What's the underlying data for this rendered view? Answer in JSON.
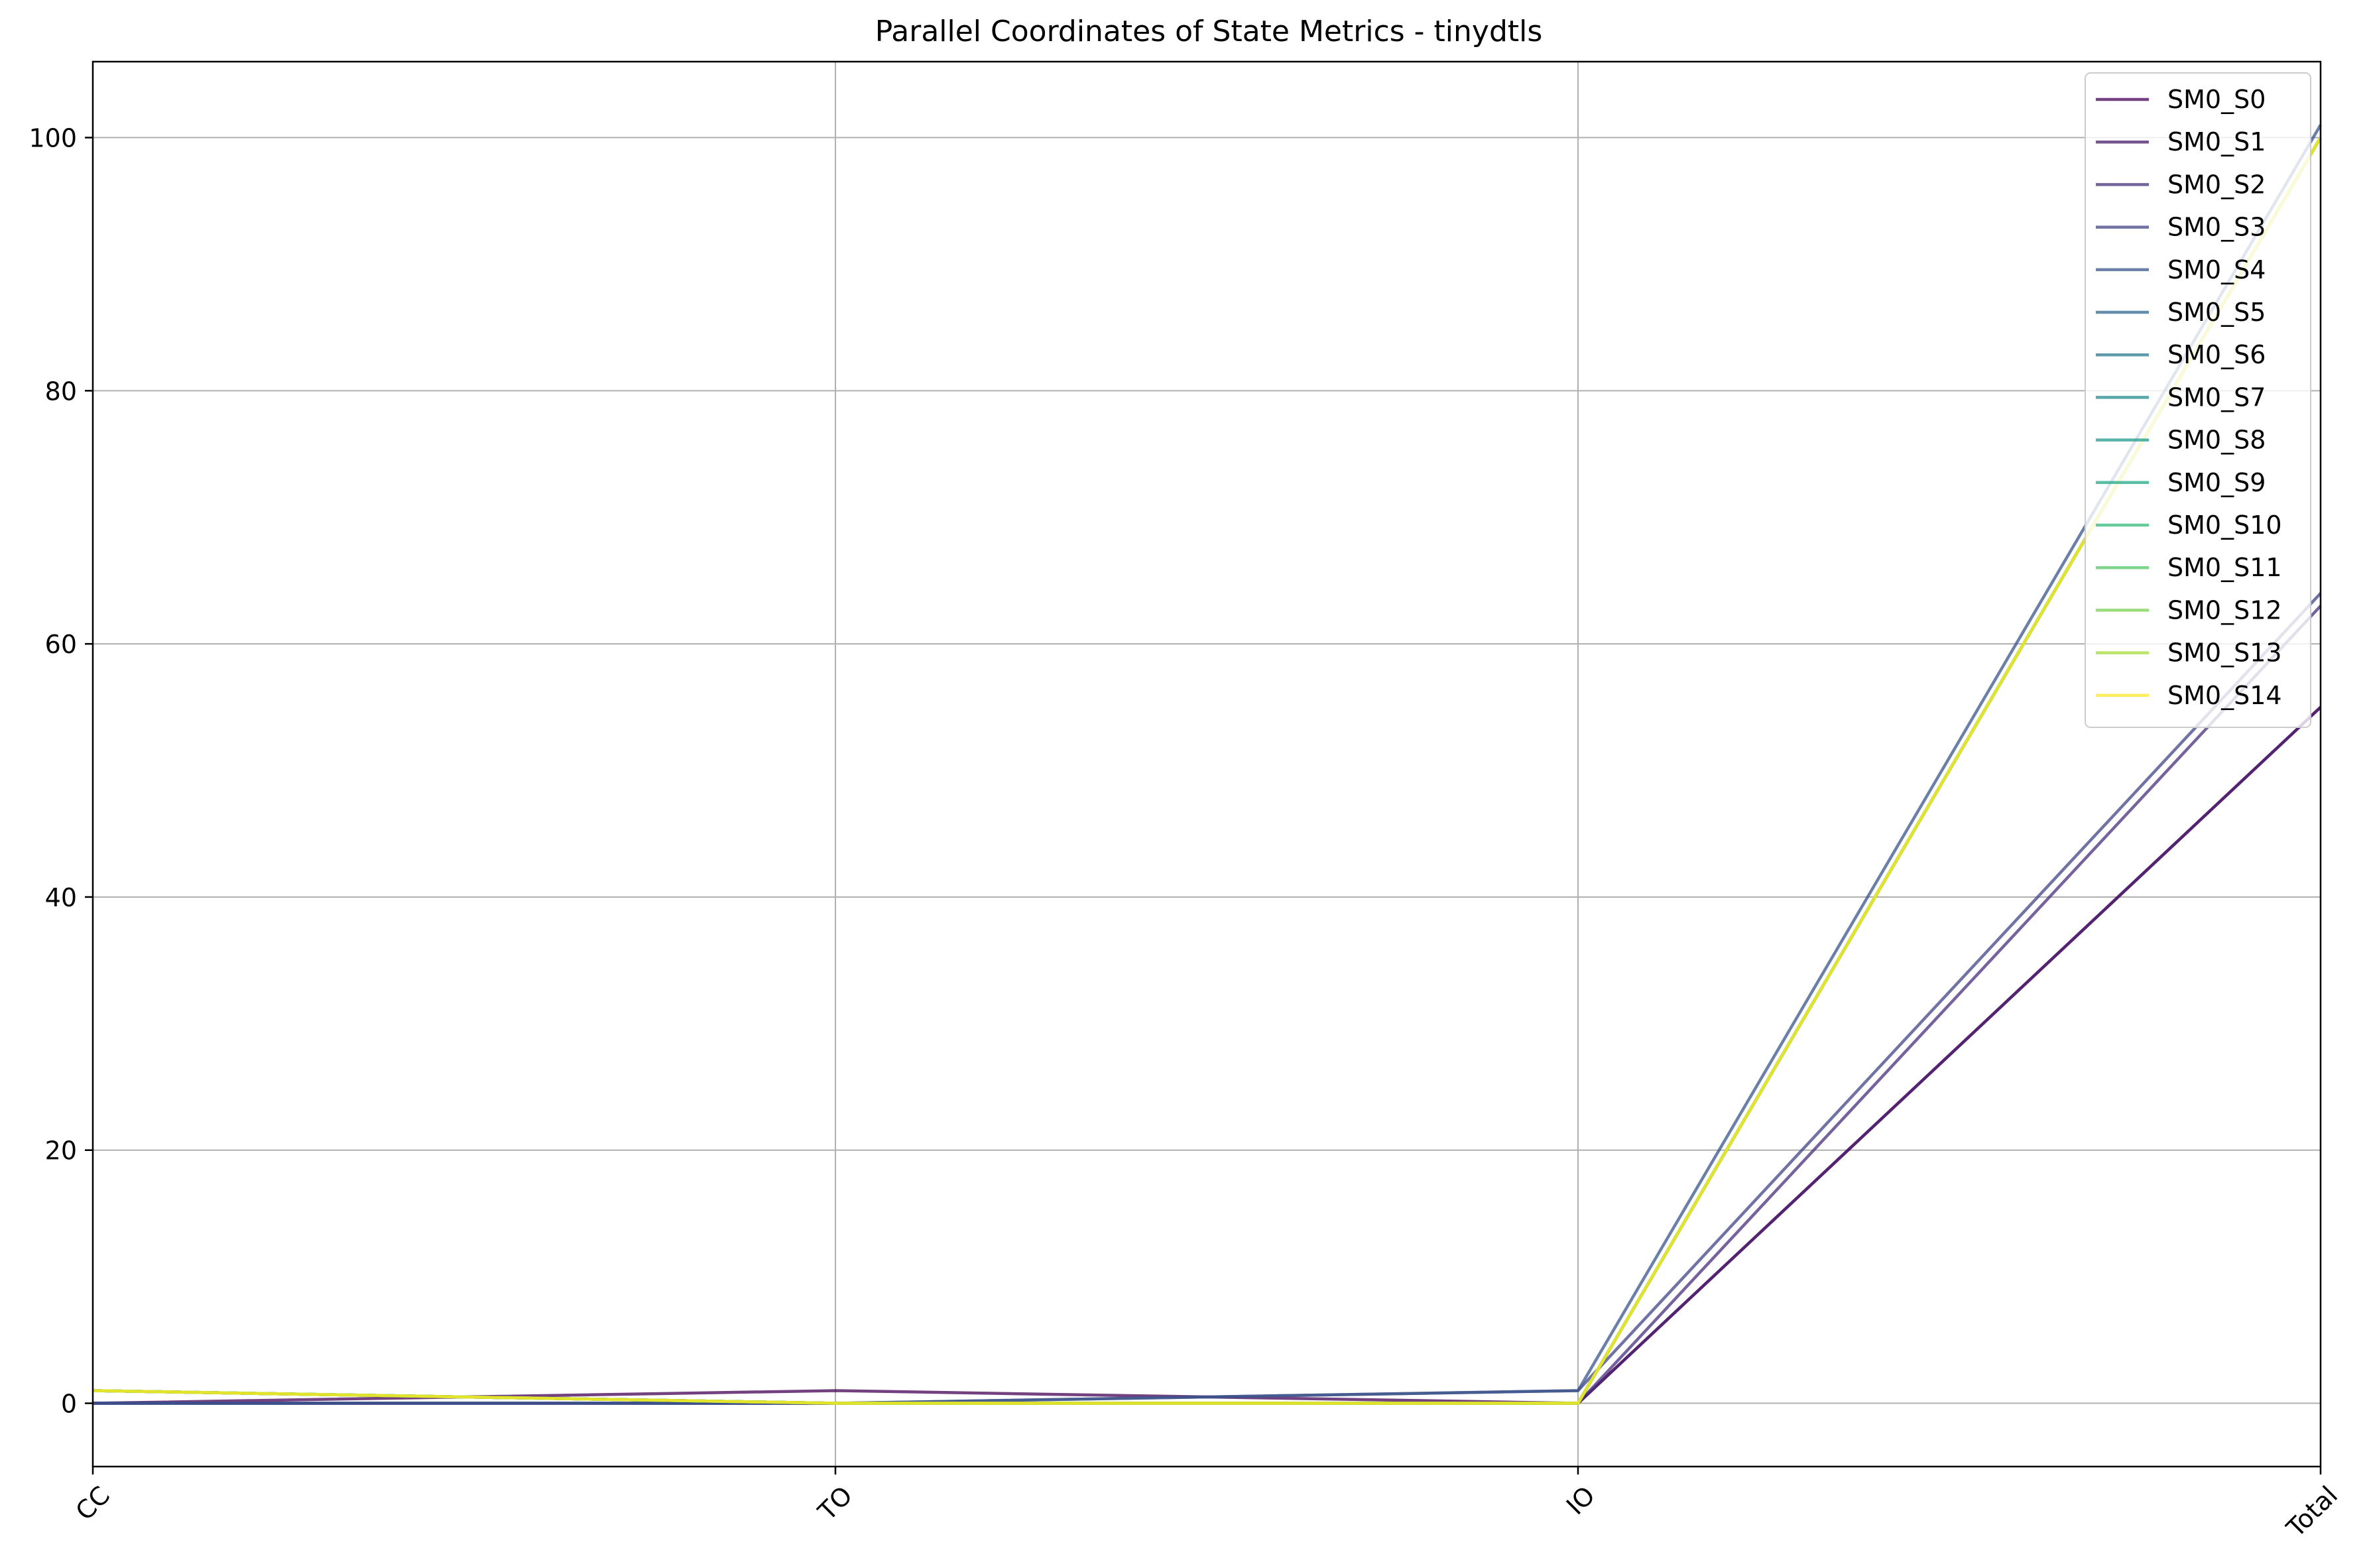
{
  "chart_data": {
    "type": "line",
    "title": "Parallel Coordinates of State Metrics - tinydtls",
    "xlabel": "",
    "ylabel": "",
    "categories": [
      "CC",
      "TO",
      "IO",
      "Total"
    ],
    "ylim": [
      -5,
      106
    ],
    "yticks": [
      0,
      20,
      40,
      60,
      80,
      100
    ],
    "grid": true,
    "legend_position": "top-right",
    "series": [
      {
        "name": "SM0_S0",
        "color": "#440154",
        "values": [
          0,
          1,
          0,
          55
        ]
      },
      {
        "name": "SM0_S1",
        "color": "#481a6c",
        "values": [
          0,
          0,
          0,
          55
        ]
      },
      {
        "name": "SM0_S2",
        "color": "#472f7d",
        "values": [
          0,
          0,
          0,
          63
        ]
      },
      {
        "name": "SM0_S3",
        "color": "#414487",
        "values": [
          0,
          0,
          1,
          64
        ]
      },
      {
        "name": "SM0_S4",
        "color": "#39568c",
        "values": [
          0,
          0,
          1,
          101
        ]
      },
      {
        "name": "SM0_S5",
        "color": "#31688e",
        "values": [
          1,
          0,
          0,
          100
        ]
      },
      {
        "name": "SM0_S6",
        "color": "#2a788e",
        "values": [
          1,
          0,
          0,
          100
        ]
      },
      {
        "name": "SM0_S7",
        "color": "#23888e",
        "values": [
          1,
          0,
          0,
          100
        ]
      },
      {
        "name": "SM0_S8",
        "color": "#1f988b",
        "values": [
          1,
          0,
          0,
          100
        ]
      },
      {
        "name": "SM0_S9",
        "color": "#22a884",
        "values": [
          1,
          0,
          0,
          100
        ]
      },
      {
        "name": "SM0_S10",
        "color": "#35b779",
        "values": [
          1,
          0,
          0,
          100
        ]
      },
      {
        "name": "SM0_S11",
        "color": "#54c568",
        "values": [
          1,
          0,
          0,
          100
        ]
      },
      {
        "name": "SM0_S12",
        "color": "#7ad151",
        "values": [
          1,
          0,
          0,
          100
        ]
      },
      {
        "name": "SM0_S13",
        "color": "#a5db36",
        "values": [
          1,
          0,
          0,
          100
        ]
      },
      {
        "name": "SM0_S14",
        "color": "#fde725",
        "values": [
          1,
          0,
          0,
          100
        ]
      }
    ]
  }
}
